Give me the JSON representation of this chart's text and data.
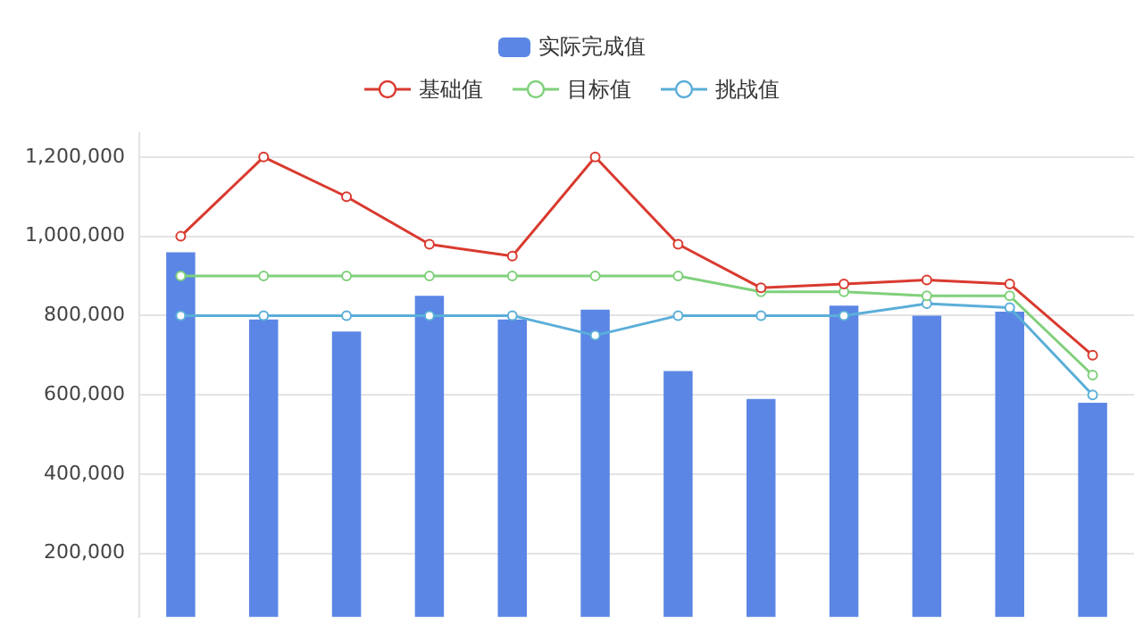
{
  "chart_data": {
    "type": "bar",
    "categories": [
      null,
      null,
      null,
      null,
      null,
      null,
      null,
      null,
      null,
      null,
      null,
      null
    ],
    "series": [
      {
        "name": "实际完成值",
        "color": "#5b86e5",
        "values": [
          960000,
          790000,
          760000,
          850000,
          790000,
          815000,
          660000,
          590000,
          825000,
          800000,
          810000,
          580000
        ]
      },
      {
        "name": "基础值",
        "type": "line",
        "color": "#d93a2f",
        "values": [
          1000000,
          1200000,
          1100000,
          980000,
          950000,
          1200000,
          980000,
          870000,
          880000,
          890000,
          880000,
          700000
        ]
      },
      {
        "name": "目标值",
        "type": "line",
        "color": "#7fd07a",
        "values": [
          900000,
          900000,
          900000,
          900000,
          900000,
          900000,
          900000,
          860000,
          860000,
          850000,
          850000,
          650000
        ]
      },
      {
        "name": "挑战值",
        "type": "line",
        "color": "#5aaed8",
        "values": [
          800000,
          800000,
          800000,
          800000,
          800000,
          750000,
          800000,
          800000,
          800000,
          830000,
          820000,
          600000
        ]
      }
    ],
    "ylim": [
      40000,
      1260000
    ],
    "yticks": [
      {
        "value": 200000,
        "label": "200,000"
      },
      {
        "value": 400000,
        "label": "400,000"
      },
      {
        "value": 600000,
        "label": "600,000"
      },
      {
        "value": 800000,
        "label": "800,000"
      },
      {
        "value": 1000000,
        "label": "1,000,000"
      },
      {
        "value": 1200000,
        "label": "1,200,000"
      }
    ],
    "grid": "y",
    "legend": "top",
    "marker": "circle",
    "line_style": "solid",
    "tick_labels": "y"
  }
}
